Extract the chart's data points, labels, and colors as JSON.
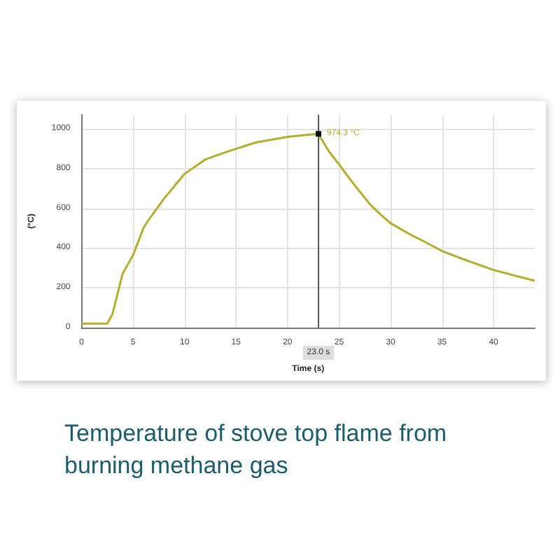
{
  "chart_data": {
    "type": "line",
    "title": "Temperature of stove top flame from burning methane gas",
    "xlabel": "Time (s)",
    "ylabel": "(°C)",
    "x": [
      0,
      2.5,
      3,
      4,
      5,
      6,
      6.5,
      8,
      10,
      12,
      14,
      16,
      17,
      20,
      22,
      23,
      24,
      25,
      26,
      27,
      28,
      29,
      30,
      31,
      32,
      33,
      35,
      37,
      40,
      42,
      44
    ],
    "series": [
      {
        "color": "#b5ae2a",
        "values": [
          20,
          20,
          68,
          273,
          364,
          500,
          541,
          648,
          773,
          845,
          882,
          916,
          932,
          959,
          970,
          974.3,
          887,
          820,
          750,
          684,
          620,
          570,
          525,
          495,
          465,
          440,
          385,
          345,
          290,
          262,
          236
        ]
      }
    ],
    "xlim": [
      0,
      44
    ],
    "xticks": [
      0,
      5,
      10,
      15,
      20,
      25,
      30,
      35,
      40
    ],
    "ylim": [
      0,
      1070
    ],
    "yticks": [
      0,
      200,
      400,
      600,
      800,
      1000
    ],
    "grid": true,
    "marker": "none",
    "line_style": "solid",
    "ref_lines": [
      {
        "axis": "x",
        "value": 23,
        "label": "23.0 s",
        "color": "#555555"
      }
    ],
    "annotations": [
      {
        "text": "974.3 °C",
        "x": 23,
        "y": 974.3
      }
    ]
  }
}
